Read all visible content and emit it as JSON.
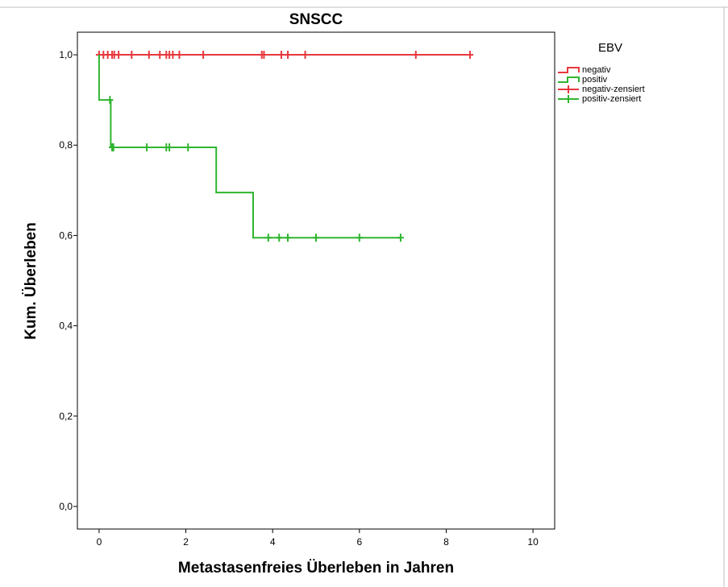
{
  "chart_data": {
    "type": "line",
    "title": "SNSCC",
    "xlabel": "Metastasenfreies Überleben in Jahren",
    "ylabel": "Kum. Überleben",
    "xlim": [
      -0.5,
      10.5
    ],
    "ylim": [
      -0.05,
      1.05
    ],
    "x_ticks": [
      0,
      2,
      4,
      6,
      8,
      10
    ],
    "x_tick_labels": [
      "0",
      "2",
      "4",
      "6",
      "8",
      "10"
    ],
    "y_ticks": [
      0.0,
      0.2,
      0.4,
      0.6,
      0.8,
      1.0
    ],
    "y_tick_labels": [
      "0,0",
      "0,2",
      "0,4",
      "0,6",
      "0,8",
      "1,0"
    ],
    "grid": false,
    "legend": {
      "title": "EBV",
      "position": "right",
      "entries": [
        "negativ",
        "positiv",
        "negativ-zensiert",
        "positiv-zensiert"
      ]
    },
    "series": [
      {
        "name": "negativ",
        "color": "#e8383d",
        "steps": [
          [
            0,
            1.0
          ],
          [
            8.55,
            1.0
          ]
        ],
        "censored_name": "negativ-zensiert",
        "censored": [
          [
            0.0,
            1.0
          ],
          [
            0.1,
            1.0
          ],
          [
            0.2,
            1.0
          ],
          [
            0.3,
            1.0
          ],
          [
            0.35,
            1.0
          ],
          [
            0.45,
            1.0
          ],
          [
            0.75,
            1.0
          ],
          [
            1.15,
            1.0
          ],
          [
            1.4,
            1.0
          ],
          [
            1.55,
            1.0
          ],
          [
            1.62,
            1.0
          ],
          [
            1.7,
            1.0
          ],
          [
            1.85,
            1.0
          ],
          [
            2.4,
            1.0
          ],
          [
            3.75,
            1.0
          ],
          [
            3.8,
            1.0
          ],
          [
            4.2,
            1.0
          ],
          [
            4.35,
            1.0
          ],
          [
            4.75,
            1.0
          ],
          [
            7.3,
            1.0
          ],
          [
            8.55,
            1.0
          ]
        ]
      },
      {
        "name": "positiv",
        "color": "#2fb52f",
        "steps": [
          [
            0,
            1.0
          ],
          [
            0,
            0.9
          ],
          [
            0.27,
            0.9
          ],
          [
            0.27,
            0.795
          ],
          [
            2.7,
            0.795
          ],
          [
            2.7,
            0.695
          ],
          [
            3.55,
            0.695
          ],
          [
            3.55,
            0.595
          ],
          [
            6.95,
            0.595
          ]
        ],
        "censored_name": "positiv-zensiert",
        "censored": [
          [
            0.25,
            0.9
          ],
          [
            0.3,
            0.795
          ],
          [
            0.33,
            0.795
          ],
          [
            1.1,
            0.795
          ],
          [
            1.55,
            0.795
          ],
          [
            1.62,
            0.795
          ],
          [
            2.05,
            0.795
          ],
          [
            3.9,
            0.595
          ],
          [
            4.15,
            0.595
          ],
          [
            4.35,
            0.595
          ],
          [
            5.0,
            0.595
          ],
          [
            6.0,
            0.595
          ],
          [
            6.95,
            0.595
          ]
        ]
      }
    ]
  }
}
